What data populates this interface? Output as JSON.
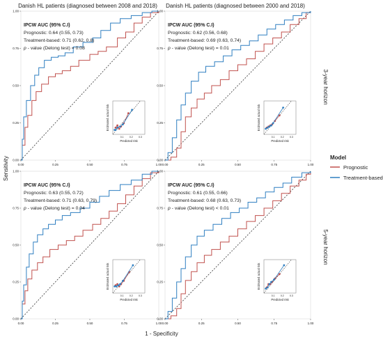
{
  "figure": {
    "col_titles": [
      "Danish HL patients (diagnosed between 2008 and 2018)",
      "Danish HL patients (diagnosed between 2000 and 2018)"
    ],
    "row_titles": [
      "3-year horizon",
      "5-year horizon"
    ],
    "xlabel": "1 - Specificity",
    "ylabel": "Sensitivity",
    "legend": {
      "title": "Model",
      "items": [
        "Prognostic",
        "Treatment-based"
      ]
    },
    "colors": {
      "prognostic": "#c0504d",
      "treatment": "#2f7fc1",
      "diag": "#333333"
    }
  },
  "chart_data": [
    {
      "type": "line",
      "panel": "top-left",
      "ann_title": "IPCW AUC (95% C.I)",
      "ann_lines": [
        "Prognostic: 0.64 (0.55, 0.73)",
        "Treatment-based: 0.71 (0.62, 0.8)"
      ],
      "ann_p_italic": "p",
      "ann_p_rest": " - value (Delong test) = 0.08",
      "xlim": [
        0,
        1
      ],
      "ylim": [
        0,
        1
      ],
      "x_ticks": [
        "0.00",
        "0.25",
        "0.50",
        "0.75",
        "1.00"
      ],
      "y_ticks": [
        "0.00",
        "0.25",
        "0.50",
        "0.75",
        "1.00"
      ],
      "series": [
        {
          "name": "Prognostic",
          "x": [
            0,
            0.01,
            0.03,
            0.05,
            0.08,
            0.11,
            0.15,
            0.2,
            0.25,
            0.3,
            0.36,
            0.42,
            0.5,
            0.56,
            0.62,
            0.7,
            0.76,
            0.82,
            0.88,
            0.94,
            1.0
          ],
          "y": [
            0,
            0.1,
            0.22,
            0.3,
            0.4,
            0.46,
            0.51,
            0.56,
            0.58,
            0.6,
            0.63,
            0.67,
            0.71,
            0.73,
            0.76,
            0.82,
            0.86,
            0.92,
            0.96,
            0.99,
            1.0
          ]
        },
        {
          "name": "Treatment-based",
          "x": [
            0,
            0.01,
            0.02,
            0.04,
            0.07,
            0.1,
            0.13,
            0.17,
            0.22,
            0.27,
            0.32,
            0.38,
            0.45,
            0.52,
            0.58,
            0.65,
            0.72,
            0.8,
            0.88,
            0.95,
            1.0
          ],
          "y": [
            0,
            0.14,
            0.29,
            0.4,
            0.5,
            0.57,
            0.62,
            0.67,
            0.69,
            0.7,
            0.72,
            0.76,
            0.79,
            0.82,
            0.87,
            0.92,
            0.95,
            0.97,
            0.99,
            1.0,
            1.0
          ]
        }
      ],
      "calibration": {
        "xlabel": "Predicted risk",
        "ylabel": "Estimated actual risk",
        "x_ticks": [
          "0.1",
          "0.2",
          "0.3"
        ],
        "xlim": [
          0,
          0.35
        ],
        "ylim": [
          0,
          0.3
        ],
        "prognostic": {
          "x": [
            0.03,
            0.05,
            0.07,
            0.09,
            0.12,
            0.17
          ],
          "y": [
            0.06,
            0.08,
            0.05,
            0.07,
            0.1,
            0.19
          ]
        },
        "treatment": {
          "x": [
            0.02,
            0.03,
            0.05,
            0.08,
            0.11,
            0.21
          ],
          "y": [
            0.04,
            0.04,
            0.06,
            0.07,
            0.09,
            0.22
          ]
        }
      }
    },
    {
      "type": "line",
      "panel": "top-right",
      "ann_title": "IPCW AUC (95% C.I)",
      "ann_lines": [
        "Prognostic: 0.62 (0.56, 0.68)",
        "Treatment-based: 0.69 (0.63, 0.74)"
      ],
      "ann_p_italic": "p",
      "ann_p_rest": " - value (Delong test) = 0.01",
      "xlim": [
        0,
        1
      ],
      "ylim": [
        0,
        1
      ],
      "x_ticks": [
        "0.00",
        "0.25",
        "0.50",
        "0.75",
        "1.00"
      ],
      "y_ticks": [
        "0.00",
        "0.25",
        "0.50",
        "0.75",
        "1.00"
      ],
      "series": [
        {
          "name": "Prognostic",
          "x": [
            0,
            0.04,
            0.08,
            0.11,
            0.14,
            0.18,
            0.22,
            0.27,
            0.32,
            0.38,
            0.44,
            0.5,
            0.56,
            0.62,
            0.68,
            0.74,
            0.8,
            0.86,
            0.92,
            0.97,
            1.0
          ],
          "y": [
            0,
            0.02,
            0.08,
            0.19,
            0.29,
            0.35,
            0.41,
            0.45,
            0.5,
            0.54,
            0.6,
            0.64,
            0.68,
            0.73,
            0.78,
            0.82,
            0.86,
            0.91,
            0.95,
            0.99,
            1.0
          ]
        },
        {
          "name": "Treatment-based",
          "x": [
            0,
            0.02,
            0.05,
            0.08,
            0.11,
            0.14,
            0.18,
            0.23,
            0.28,
            0.34,
            0.4,
            0.46,
            0.52,
            0.58,
            0.64,
            0.7,
            0.76,
            0.82,
            0.88,
            0.94,
            1.0
          ],
          "y": [
            0,
            0.05,
            0.15,
            0.27,
            0.37,
            0.45,
            0.53,
            0.59,
            0.63,
            0.66,
            0.7,
            0.74,
            0.77,
            0.8,
            0.84,
            0.88,
            0.91,
            0.94,
            0.97,
            0.99,
            1.0
          ]
        }
      ],
      "calibration": {
        "xlabel": "Predicted risk",
        "ylabel": "Estimated actual risk",
        "x_ticks": [
          "0.1",
          "0.2",
          "0.3"
        ],
        "xlim": [
          0,
          0.35
        ],
        "ylim": [
          0,
          0.3
        ],
        "prognostic": {
          "x": [
            0.03,
            0.05,
            0.07,
            0.09,
            0.12,
            0.17
          ],
          "y": [
            0.06,
            0.07,
            0.08,
            0.09,
            0.12,
            0.17
          ]
        },
        "treatment": {
          "x": [
            0.02,
            0.04,
            0.06,
            0.08,
            0.1,
            0.21
          ],
          "y": [
            0.05,
            0.06,
            0.07,
            0.08,
            0.1,
            0.24
          ]
        }
      }
    },
    {
      "type": "line",
      "panel": "bottom-left",
      "ann_title": "IPCW AUC (95% C.I)",
      "ann_lines": [
        "Prognostic: 0.63 (0.55, 0.72)",
        "Treatment-based: 0.71 (0.63, 0.79)"
      ],
      "ann_p_italic": "p",
      "ann_p_rest": " - value (Delong test) = 0.04",
      "xlim": [
        0,
        1
      ],
      "ylim": [
        0,
        1
      ],
      "x_ticks": [
        "0.00",
        "0.25",
        "0.50",
        "0.75",
        "1.00"
      ],
      "y_ticks": [
        "0.00",
        "0.25",
        "0.50",
        "0.75",
        "1.00"
      ],
      "series": [
        {
          "name": "Prognostic",
          "x": [
            0,
            0.01,
            0.03,
            0.05,
            0.08,
            0.12,
            0.16,
            0.21,
            0.27,
            0.33,
            0.39,
            0.45,
            0.52,
            0.58,
            0.64,
            0.7,
            0.76,
            0.82,
            0.88,
            0.94,
            1.0
          ],
          "y": [
            0,
            0.1,
            0.19,
            0.27,
            0.33,
            0.38,
            0.42,
            0.47,
            0.5,
            0.53,
            0.56,
            0.6,
            0.64,
            0.68,
            0.73,
            0.78,
            0.84,
            0.9,
            0.95,
            0.99,
            1.0
          ]
        },
        {
          "name": "Treatment-based",
          "x": [
            0,
            0.01,
            0.02,
            0.04,
            0.06,
            0.09,
            0.12,
            0.16,
            0.2,
            0.25,
            0.3,
            0.36,
            0.43,
            0.5,
            0.57,
            0.64,
            0.72,
            0.8,
            0.88,
            0.95,
            1.0
          ],
          "y": [
            0,
            0.12,
            0.23,
            0.35,
            0.44,
            0.52,
            0.57,
            0.61,
            0.64,
            0.67,
            0.7,
            0.72,
            0.75,
            0.79,
            0.83,
            0.87,
            0.91,
            0.94,
            0.98,
            1.0,
            1.0
          ]
        }
      ],
      "calibration": {
        "xlabel": "Predicted risk",
        "ylabel": "Estimated actual risk",
        "x_ticks": [
          "0.1",
          "0.2",
          "0.3"
        ],
        "xlim": [
          0,
          0.35
        ],
        "ylim": [
          0,
          0.3
        ],
        "prognostic": {
          "x": [
            0.03,
            0.05,
            0.07,
            0.09,
            0.12,
            0.18
          ],
          "y": [
            0.07,
            0.08,
            0.06,
            0.08,
            0.11,
            0.19
          ]
        },
        "treatment": {
          "x": [
            0.02,
            0.04,
            0.06,
            0.08,
            0.11,
            0.22
          ],
          "y": [
            0.06,
            0.06,
            0.07,
            0.08,
            0.11,
            0.25
          ]
        }
      }
    },
    {
      "type": "line",
      "panel": "bottom-right",
      "ann_title": "IPCW AUC (95% C.I)",
      "ann_lines": [
        "Prognostic: 0.61 (0.55, 0.66)",
        "Treatment-based: 0.68 (0.63, 0.73)"
      ],
      "ann_p_italic": "p",
      "ann_p_rest": " - value (Delong test) < 0.01",
      "xlim": [
        0,
        1
      ],
      "ylim": [
        0,
        1
      ],
      "x_ticks": [
        "0.00",
        "0.25",
        "0.50",
        "0.75",
        "1.00"
      ],
      "y_ticks": [
        "0.00",
        "0.25",
        "0.50",
        "0.75",
        "1.00"
      ],
      "series": [
        {
          "name": "Prognostic",
          "x": [
            0,
            0.04,
            0.08,
            0.11,
            0.14,
            0.18,
            0.22,
            0.27,
            0.32,
            0.38,
            0.44,
            0.5,
            0.56,
            0.62,
            0.68,
            0.74,
            0.8,
            0.86,
            0.92,
            0.97,
            1.0
          ],
          "y": [
            0,
            0.02,
            0.07,
            0.17,
            0.26,
            0.32,
            0.38,
            0.43,
            0.47,
            0.52,
            0.56,
            0.61,
            0.66,
            0.7,
            0.75,
            0.8,
            0.85,
            0.9,
            0.94,
            0.98,
            1.0
          ]
        },
        {
          "name": "Treatment-based",
          "x": [
            0,
            0.02,
            0.05,
            0.08,
            0.11,
            0.14,
            0.18,
            0.22,
            0.27,
            0.33,
            0.39,
            0.45,
            0.51,
            0.57,
            0.63,
            0.69,
            0.75,
            0.81,
            0.87,
            0.94,
            1.0
          ],
          "y": [
            0,
            0.05,
            0.14,
            0.25,
            0.34,
            0.42,
            0.5,
            0.56,
            0.6,
            0.64,
            0.68,
            0.72,
            0.75,
            0.79,
            0.82,
            0.86,
            0.89,
            0.92,
            0.96,
            0.99,
            1.0
          ]
        }
      ],
      "calibration": {
        "xlabel": "Predicted risk",
        "ylabel": "Estimated actual risk",
        "x_ticks": [
          "0.1",
          "0.2",
          "0.3"
        ],
        "xlim": [
          0,
          0.35
        ],
        "ylim": [
          0,
          0.3
        ],
        "prognostic": {
          "x": [
            0.03,
            0.05,
            0.07,
            0.09,
            0.12,
            0.17
          ],
          "y": [
            0.05,
            0.08,
            0.08,
            0.1,
            0.13,
            0.17
          ]
        },
        "treatment": {
          "x": [
            0.02,
            0.04,
            0.06,
            0.08,
            0.11,
            0.22
          ],
          "y": [
            0.04,
            0.05,
            0.08,
            0.1,
            0.12,
            0.25
          ]
        }
      }
    }
  ]
}
